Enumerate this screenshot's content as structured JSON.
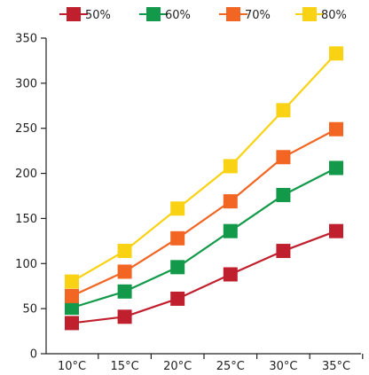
{
  "chart_data": {
    "type": "line",
    "title": "",
    "xlabel": "",
    "ylabel": "",
    "categories": [
      "10°C",
      "15°C",
      "20°C",
      "25°C",
      "30°C",
      "35°C"
    ],
    "ylim": [
      0,
      350
    ],
    "yticks": [
      "0",
      "50",
      "100",
      "150",
      "200",
      "250",
      "300",
      "350"
    ],
    "grid": false,
    "legend_position": "top",
    "series": [
      {
        "name": "50%",
        "color": "#c0202e",
        "values": [
          34,
          41,
          61,
          88,
          114,
          136
        ]
      },
      {
        "name": "60%",
        "color": "#129a4a",
        "values": [
          51,
          69,
          96,
          136,
          176,
          206
        ]
      },
      {
        "name": "70%",
        "color": "#f26522",
        "values": [
          64,
          91,
          128,
          169,
          218,
          249
        ]
      },
      {
        "name": "80%",
        "color": "#f8d213",
        "values": [
          80,
          114,
          161,
          208,
          270,
          333
        ]
      }
    ]
  }
}
